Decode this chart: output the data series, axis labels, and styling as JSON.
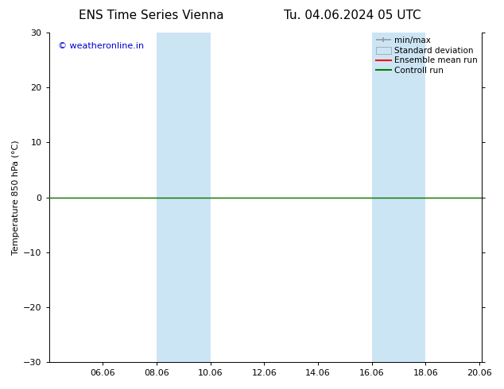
{
  "title_left": "ENS Time Series Vienna",
  "title_right": "Tu. 04.06.2024 05 UTC",
  "ylabel": "Temperature 850 hPa (°C)",
  "ylim": [
    -30,
    30
  ],
  "yticks": [
    -30,
    -20,
    -10,
    0,
    10,
    20,
    30
  ],
  "xtick_labels": [
    "06.06",
    "08.06",
    "10.06",
    "12.06",
    "14.06",
    "16.06",
    "18.06",
    "20.06"
  ],
  "xtick_positions": [
    2,
    4,
    6,
    8,
    10,
    12,
    14,
    16
  ],
  "xlim": [
    0,
    16.083
  ],
  "shaded_bands": [
    {
      "x_start": 4,
      "x_end": 6
    },
    {
      "x_start": 12,
      "x_end": 14
    }
  ],
  "watermark_text": "© weatheronline.in",
  "watermark_color": "#0000cc",
  "background_color": "#ffffff",
  "shading_color": "#cce5f5",
  "legend_minmax_color": "#999999",
  "legend_std_color": "#cce5f5",
  "legend_ensemble_color": "#ff0000",
  "legend_control_color": "#008000",
  "title_fontsize": 11,
  "ylabel_fontsize": 8,
  "tick_fontsize": 8,
  "watermark_fontsize": 8,
  "legend_fontsize": 7.5
}
